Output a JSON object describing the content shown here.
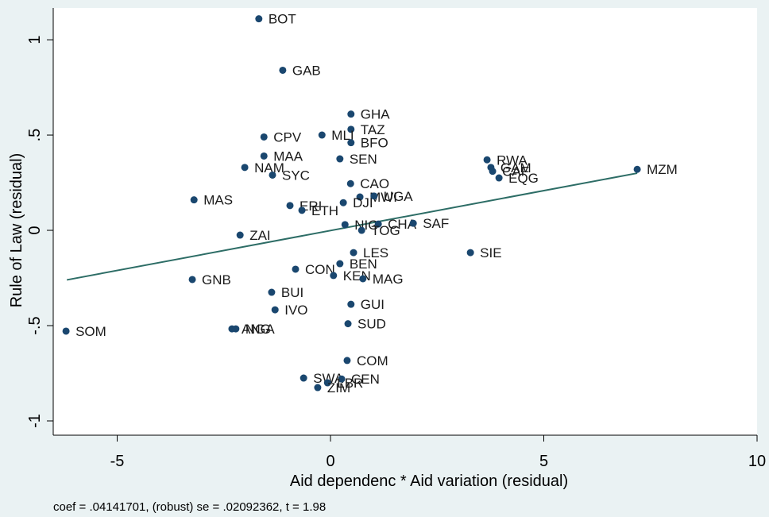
{
  "chart_data": {
    "type": "scatter",
    "x_label": "Aid dependenc * Aid variation (residual)",
    "y_label": "Rule of Law (residual)",
    "note": "coef = .04141701, (robust) se = .02092362, t = 1.98",
    "color": "#1a476f",
    "labels": [
      "BOT",
      "GAB",
      "GHA",
      "TAZ",
      "MLI",
      "CPV",
      "BFO",
      "MAA",
      "RWA",
      "SEN",
      "NAM",
      "GAM",
      "CAF",
      "MZM",
      "SYC",
      "EQG",
      "CAO",
      "MAS",
      "MWI",
      "UGA",
      "DJI",
      "ERI",
      "ETH",
      "NIG",
      "CHA",
      "SAF",
      "TOG",
      "ZAI",
      "LES",
      "SIE",
      "BEN",
      "CON",
      "KEN",
      "MAG",
      "GNB",
      "BUI",
      "GUI",
      "IVO",
      "SUD",
      "SOM",
      "ANG",
      "NGA",
      "COM",
      "SWA",
      "CEN",
      "LBR",
      "ZIM"
    ],
    "x": [
      -1.68,
      -1.12,
      0.48,
      0.48,
      -0.2,
      -1.56,
      0.48,
      -1.56,
      3.67,
      0.22,
      -2.01,
      3.76,
      3.8,
      7.19,
      -1.36,
      3.95,
      0.47,
      -3.2,
      0.69,
      1.02,
      0.3,
      -0.95,
      -0.67,
      0.34,
      1.12,
      1.94,
      0.73,
      -2.12,
      0.54,
      3.28,
      0.22,
      -0.82,
      0.07,
      0.76,
      -3.24,
      -1.38,
      0.48,
      -1.3,
      0.41,
      -6.2,
      -2.31,
      -2.22,
      0.39,
      -0.63,
      0.26,
      -0.07,
      -0.3
    ],
    "y": [
      1.11,
      0.84,
      0.61,
      0.53,
      0.5,
      0.49,
      0.46,
      0.39,
      0.37,
      0.375,
      0.33,
      0.33,
      0.31,
      0.32,
      0.29,
      0.275,
      0.245,
      0.16,
      0.175,
      0.18,
      0.145,
      0.13,
      0.105,
      0.03,
      0.033,
      0.037,
      0.0,
      -0.025,
      -0.117,
      -0.117,
      -0.175,
      -0.204,
      -0.237,
      -0.254,
      -0.258,
      -0.325,
      -0.388,
      -0.417,
      -0.49,
      -0.529,
      -0.517,
      -0.517,
      -0.683,
      -0.775,
      -0.78,
      -0.8,
      -0.825
    ],
    "fit_line": {
      "color": "#2d6d66",
      "x": [
        -6.18,
        7.19
      ],
      "y": [
        -0.26,
        0.3
      ]
    },
    "xlim": [
      -6.5,
      10
    ],
    "xticks": [
      -5,
      0,
      5,
      10
    ],
    "ylim": [
      -1.075,
      1.167
    ],
    "yticks": [
      {
        "value": -1,
        "label": "-1"
      },
      {
        "value": -0.5,
        "label": "-.5"
      },
      0,
      {
        "value": 0.5,
        "label": ".5"
      },
      1
    ]
  }
}
